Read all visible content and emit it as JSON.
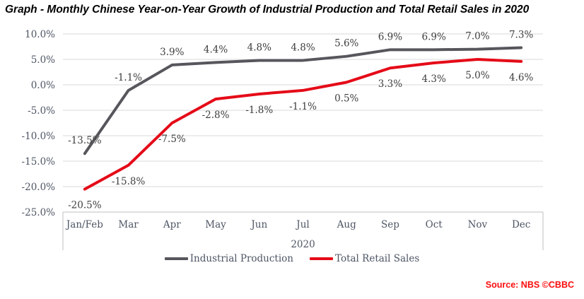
{
  "title": "Graph - Monthly Chinese Year-on-Year Growth of Industrial Production and Total Retail Sales in 2020",
  "source": "Source: NBS ©CBBC",
  "chart_data": {
    "type": "line",
    "categories": [
      "Jan/Feb",
      "Mar",
      "Apr",
      "May",
      "Jun",
      "Jul",
      "Aug",
      "Sep",
      "Oct",
      "Nov",
      "Dec"
    ],
    "series": [
      {
        "name": "Industrial Production",
        "color": "#57565c",
        "label_position": "above",
        "values": [
          -13.5,
          -1.1,
          3.9,
          4.4,
          4.8,
          4.8,
          5.6,
          6.9,
          6.9,
          7.0,
          7.3
        ],
        "labels": [
          "-13.5%",
          "-1.1%",
          "3.9%",
          "4.4%",
          "4.8%",
          "4.8%",
          "5.6%",
          "6.9%",
          "6.9%",
          "7.0%",
          "7.3%"
        ]
      },
      {
        "name": "Total Retail Sales",
        "color": "#e50b18",
        "label_position": "below",
        "values": [
          -20.5,
          -15.8,
          -7.5,
          -2.8,
          -1.8,
          -1.1,
          0.5,
          3.3,
          4.3,
          5.0,
          4.6
        ],
        "labels": [
          "-20.5%",
          "-15.8%",
          "-7.5%",
          "-2.8%",
          "-1.8%",
          "-1.1%",
          "0.5%",
          "3.3%",
          "4.3%",
          "5.0%",
          "4.6%"
        ]
      }
    ],
    "xlabel": "2020",
    "ylabel": "",
    "ylim": [
      -25,
      10
    ],
    "ytick_step": 5,
    "yticks": [
      "10.0%",
      "5.0%",
      "0.0%",
      "-5.0%",
      "-10.0%",
      "-15.0%",
      "-20.0%",
      "-25.0%"
    ],
    "grid": true,
    "legend_position": "bottom",
    "colors": {
      "grid": "#d9d9d9",
      "axis": "#bfbfbf",
      "tick_label": "#4d5564",
      "data_label": "#3d3d3d",
      "title": "#000000",
      "source": "#fb0d0d",
      "background": "#ffffff"
    }
  }
}
